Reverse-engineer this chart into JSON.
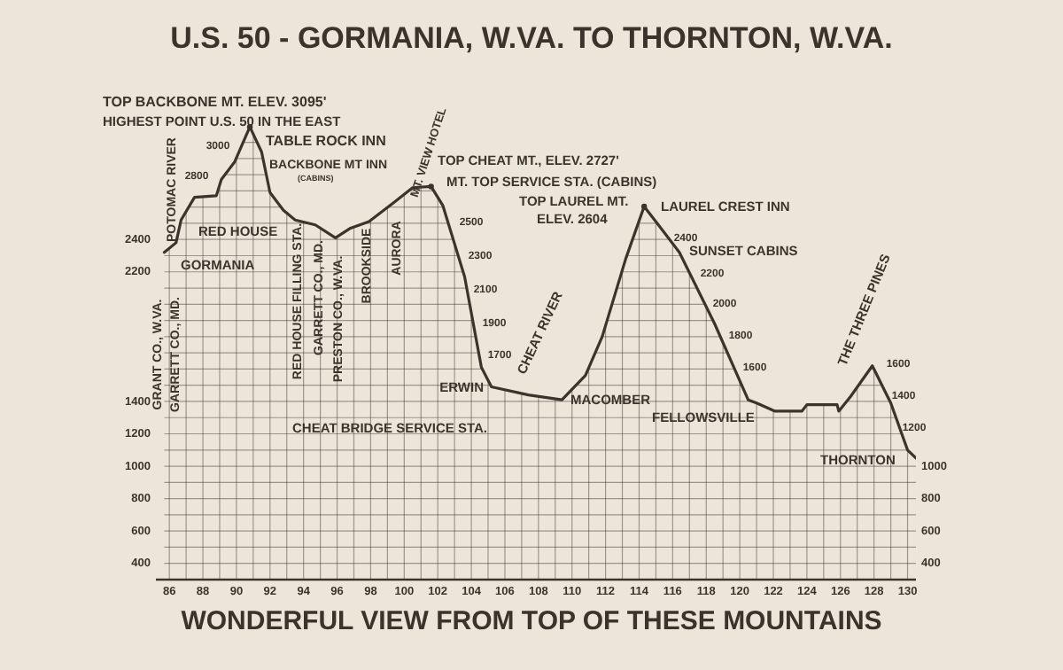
{
  "chart_data": {
    "type": "line",
    "title": "U.S. 50 - GORMANIA, W.VA. TO THORNTON, W.VA.",
    "x": [
      85.7,
      86.4,
      86.7,
      87.5,
      88.8,
      89.1,
      89.9,
      90.8,
      91.5,
      92.0,
      92.8,
      93.5,
      94.7,
      95.9,
      96.8,
      97.9,
      99.4,
      100.5,
      101.6,
      102.3,
      103.6,
      104.6,
      105.2,
      107.4,
      109.4,
      110.8,
      111.8,
      113.2,
      114.3,
      115.3,
      116.4,
      118.5,
      120.5,
      121.0,
      122.1,
      123.7,
      124.0,
      125.8,
      125.9,
      126.6,
      127.9,
      129.0,
      130.0,
      130.5
    ],
    "series": [
      {
        "color": "#3a342c",
        "values": [
          2320,
          2380,
          2520,
          2660,
          2670,
          2770,
          2880,
          3095,
          2940,
          2690,
          2580,
          2520,
          2490,
          2410,
          2470,
          2510,
          2630,
          2720,
          2727,
          2610,
          2170,
          1610,
          1490,
          1440,
          1410,
          1560,
          1800,
          2280,
          2604,
          2470,
          2320,
          1880,
          1410,
          1390,
          1340,
          1340,
          1380,
          1380,
          1340,
          1430,
          1620,
          1390,
          1100,
          1050
        ]
      }
    ],
    "xlim": [
      85.2,
      130.5
    ],
    "xticks": [
      86,
      {
        "value": 87,
        "label": null
      },
      88,
      {
        "value": 89,
        "label": null
      },
      90,
      {
        "value": 91,
        "label": null
      },
      92,
      {
        "value": 93,
        "label": null
      },
      94,
      {
        "value": 95,
        "label": null
      },
      96,
      {
        "value": 97,
        "label": null
      },
      98,
      {
        "value": 99,
        "label": null
      },
      100,
      {
        "value": 101,
        "label": null
      },
      102,
      {
        "value": 103,
        "label": null
      },
      104,
      {
        "value": 105,
        "label": null
      },
      106,
      {
        "value": 107,
        "label": null
      },
      108,
      {
        "value": 109,
        "label": null
      },
      110,
      {
        "value": 111,
        "label": null
      },
      112,
      {
        "value": 113,
        "label": null
      },
      114,
      {
        "value": 115,
        "label": null
      },
      116,
      {
        "value": 117,
        "label": null
      },
      118,
      {
        "value": 119,
        "label": null
      },
      120,
      {
        "value": 121,
        "label": null
      },
      122,
      {
        "value": 123,
        "label": null
      },
      124,
      {
        "value": 125,
        "label": null
      },
      126,
      {
        "value": 127,
        "label": null
      },
      128,
      {
        "value": 129,
        "label": null
      },
      130
    ],
    "ylim": [
      300,
      3200
    ],
    "yticks": [
      400,
      {
        "value": 500,
        "label": null
      },
      600,
      {
        "value": 700,
        "label": null
      },
      800,
      {
        "value": 900,
        "label": null
      },
      1000,
      {
        "value": 1100,
        "label": null
      },
      1200,
      {
        "value": 1300,
        "label": null
      },
      1400,
      {
        "value": 1500,
        "label": null
      },
      {
        "value": 1600,
        "label": null
      },
      {
        "value": 1700,
        "label": null
      },
      {
        "value": 1800,
        "label": null
      },
      {
        "value": 1900,
        "label": null
      },
      {
        "value": 2000,
        "label": null
      },
      {
        "value": 2100,
        "label": null
      },
      2200,
      {
        "value": 2300,
        "label": null
      },
      2400,
      {
        "value": 2500,
        "label": null
      },
      {
        "value": 2600,
        "label": null
      },
      {
        "value": 2700,
        "label": null
      },
      {
        "value": 2800,
        "label": null
      },
      {
        "value": 2900,
        "label": null
      },
      {
        "value": 3000,
        "label": null
      }
    ],
    "y2lim": [
      300,
      3200
    ],
    "y2ticks": [
      400,
      600,
      800,
      1000
    ],
    "grid": true,
    "legend": false,
    "marker": "none",
    "line_style": "solid",
    "annotations": [
      {
        "text": "TOP BACKBONE MT. ELEV. 3095'",
        "x": 90.8,
        "y": 3095
      },
      "HIGHEST POINT U.S. 50 IN THE EAST",
      "TABLE ROCK INN",
      "BACKBONE MT INN",
      "(CABINS)",
      "POTOMAC RIVER",
      "GRANT CO., W.VA.",
      "GARRETT CO., MD.",
      "GORMANIA",
      "RED HOUSE",
      "RED HOUSE FILLING STA.",
      "GARRETT CO., MD.",
      "PRESTON CO., W.VA.",
      "BROOKSIDE",
      "AURORA",
      "MT. VIEW HOTEL",
      {
        "text": "TOP CHEAT MT., ELEV. 2727'",
        "x": 101.6,
        "y": 2727
      },
      "MT. TOP SERVICE STA. (CABINS)",
      {
        "text": "TOP LAUREL MT.",
        "x": 114.3,
        "y": 2604
      },
      "ELEV. 2604",
      "LAUREL CREST INN",
      "SUNSET CABINS",
      "ERWIN",
      "CHEAT BRIDGE SERVICE STA.",
      "CHEAT RIVER",
      "MACOMBER",
      "FELLOWSVILLE",
      "THE THREE PINES",
      "THORNTON",
      "WONDERFUL VIEW FROM TOP OF THESE MOUNTAINS",
      "3000",
      "2800",
      "2500",
      "2300",
      "2100",
      "1900",
      "1700",
      "2400",
      "2200",
      "2000",
      "1800",
      "1600",
      "1600",
      "1400",
      "1200"
    ]
  }
}
